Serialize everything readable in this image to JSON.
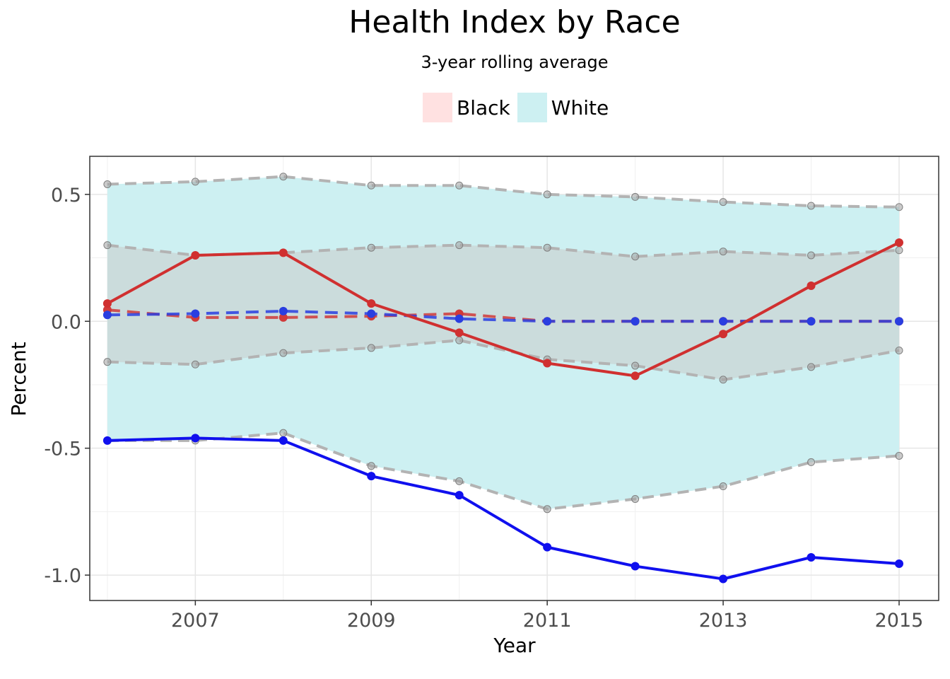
{
  "chart_data": {
    "type": "line",
    "title": "Health Index by Race",
    "subtitle": "3-year rolling average",
    "xlabel": "Year",
    "ylabel": "Percent",
    "xlim": [
      2005.8,
      2015.45
    ],
    "ylim": [
      -1.1,
      0.65
    ],
    "x_ticks": [
      2007,
      2009,
      2011,
      2013,
      2015
    ],
    "y_ticks": [
      0.5,
      0.0,
      -0.5,
      -1.0
    ],
    "y_tick_labels": [
      "0.5",
      "0.0",
      "-0.5",
      "-1.0"
    ],
    "grid": true,
    "legend": {
      "position": "top",
      "entries": [
        {
          "label": "Black",
          "color": "#ffe1e1"
        },
        {
          "label": "White",
          "color": "#cdf0f2"
        }
      ]
    },
    "x": [
      2006,
      2007,
      2008,
      2009,
      2010,
      2011,
      2012,
      2013,
      2014,
      2015
    ],
    "bands": [
      {
        "label": "White",
        "color": "#cdf0f2",
        "upper": [
          0.54,
          0.55,
          0.57,
          0.535,
          0.535,
          0.5,
          0.49,
          0.47,
          0.455,
          0.45
        ],
        "lower": [
          -0.47,
          -0.47,
          -0.44,
          -0.57,
          -0.63,
          -0.74,
          -0.7,
          -0.65,
          -0.555,
          -0.53
        ]
      },
      {
        "label": "Black",
        "color": "#ffe1e1",
        "upper": [
          0.3,
          0.26,
          0.27,
          0.29,
          0.3,
          0.29,
          0.255,
          0.275,
          0.26,
          0.28
        ],
        "lower": [
          -0.16,
          -0.17,
          -0.125,
          -0.105,
          -0.075,
          -0.15,
          -0.175,
          -0.23,
          -0.18,
          -0.115
        ]
      }
    ],
    "series": [
      {
        "color": "#d03030",
        "style": "solid",
        "values": [
          0.07,
          0.26,
          0.27,
          0.07,
          -0.045,
          -0.165,
          -0.215,
          -0.05,
          0.14,
          0.31
        ]
      },
      {
        "color": "#1010ee",
        "style": "solid",
        "values": [
          -0.47,
          -0.46,
          -0.47,
          -0.61,
          -0.685,
          -0.89,
          -0.965,
          -1.015,
          -0.93,
          -0.955
        ]
      },
      {
        "color": "#2a3ee0",
        "style": "dashed",
        "values": [
          0.025,
          0.03,
          0.04,
          0.03,
          0.01,
          0.0,
          0.0,
          0.0,
          0.0,
          0.0
        ]
      },
      {
        "color": "#d03a3a",
        "style": "dashed",
        "values": [
          0.045,
          0.015,
          0.015,
          0.02,
          0.03,
          0.0,
          0.0,
          0.0,
          0.0,
          0.0
        ]
      }
    ]
  }
}
